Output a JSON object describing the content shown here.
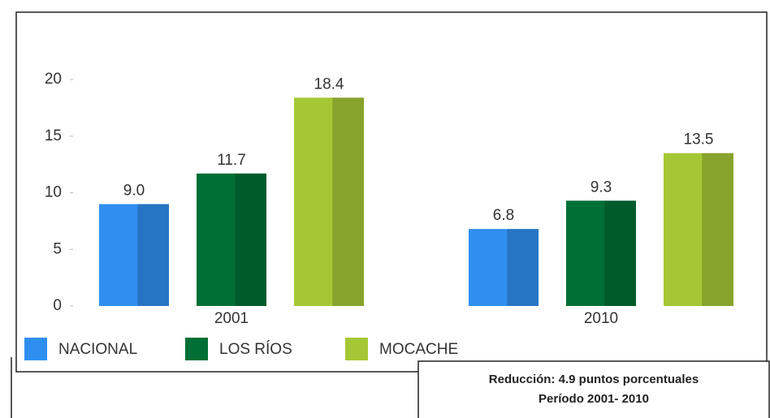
{
  "chart_data": {
    "type": "bar",
    "categories": [
      "2001",
      "2010"
    ],
    "series": [
      {
        "name": "NACIONAL",
        "color": "#2f8ff0",
        "values": [
          9.0,
          6.8
        ],
        "value_labels": [
          "9.0",
          "6.8"
        ]
      },
      {
        "name": "LOS RÍOS",
        "color": "#006f35",
        "values": [
          11.7,
          9.3
        ],
        "value_labels": [
          "11.7",
          "9.3"
        ]
      },
      {
        "name": "MOCACHE",
        "color": "#a5c735",
        "values": [
          18.4,
          13.5
        ],
        "value_labels": [
          "18.4",
          "13.5"
        ]
      }
    ],
    "ylim": [
      0,
      20
    ],
    "yticks": [
      0,
      5,
      10,
      15,
      20
    ],
    "grid": false,
    "annotations": [
      "Reducción: 4.9 puntos porcentuales",
      "Período 2001- 2010"
    ]
  }
}
